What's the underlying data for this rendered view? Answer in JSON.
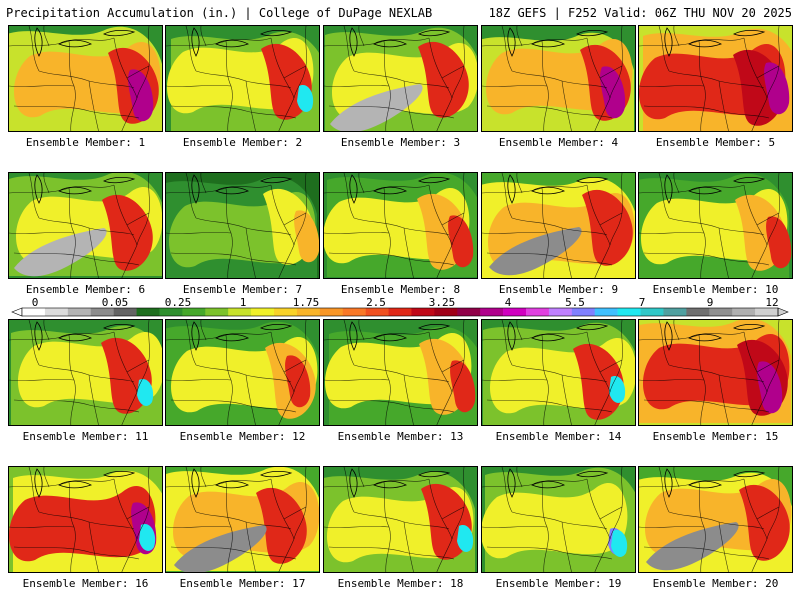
{
  "header": {
    "left": "Precipitation Accumulation (in.) | College of DuPage NEXLAB",
    "right": "18Z GEFS | F252 Valid: 06Z THU NOV 20 2025"
  },
  "colorbar": {
    "ticks": [
      "0",
      "0.05",
      "0.25",
      "1",
      "1.75",
      "2.5",
      "3.25",
      "4",
      "5.5",
      "7",
      "9",
      "12"
    ],
    "colors": [
      "#ffffff",
      "#dcdcdc",
      "#b4b4b4",
      "#8c8c8c",
      "#646464",
      "#1e6e1e",
      "#2f8f2f",
      "#46a82b",
      "#7cc22c",
      "#c8e22c",
      "#f0f02a",
      "#f8d22a",
      "#f8b42a",
      "#f89628",
      "#f87828",
      "#f05020",
      "#e02818",
      "#c00818",
      "#a00018",
      "#900048",
      "#b0008c",
      "#d000c0",
      "#e040e0",
      "#c080ff",
      "#8080ff",
      "#40c0ff",
      "#20e8f0",
      "#30c8c8",
      "#50a0a0",
      "#707070",
      "#909090",
      "#b0b0b0",
      "#d0d0d0"
    ]
  },
  "members": [
    {
      "label": "Ensemble Member: 1",
      "style": "east-heavy"
    },
    {
      "label": "Ensemble Member: 2",
      "style": "coastal-low"
    },
    {
      "label": "Ensemble Member: 3",
      "style": "gray-band"
    },
    {
      "label": "Ensemble Member: 4",
      "style": "east-heavy"
    },
    {
      "label": "Ensemble Member: 5",
      "style": "wet-widespread"
    },
    {
      "label": "Ensemble Member: 6",
      "style": "gray-band"
    },
    {
      "label": "Ensemble Member: 7",
      "style": "green-dry"
    },
    {
      "label": "Ensemble Member: 8",
      "style": "coastal-streak"
    },
    {
      "label": "Ensemble Member: 9",
      "style": "yellow-mix"
    },
    {
      "label": "Ensemble Member: 10",
      "style": "coastal-streak"
    },
    {
      "label": "Ensemble Member: 11",
      "style": "coastal-low"
    },
    {
      "label": "Ensemble Member: 12",
      "style": "coastal-streak"
    },
    {
      "label": "Ensemble Member: 13",
      "style": "coastal-streak"
    },
    {
      "label": "Ensemble Member: 14",
      "style": "coastal-low"
    },
    {
      "label": "Ensemble Member: 15",
      "style": "wet-widespread"
    },
    {
      "label": "Ensemble Member: 16",
      "style": "south-heavy"
    },
    {
      "label": "Ensemble Member: 17",
      "style": "yellow-mix"
    },
    {
      "label": "Ensemble Member: 18",
      "style": "coastal-low"
    },
    {
      "label": "Ensemble Member: 19",
      "style": "west-cyan"
    },
    {
      "label": "Ensemble Member: 20",
      "style": "yellow-mix"
    }
  ]
}
